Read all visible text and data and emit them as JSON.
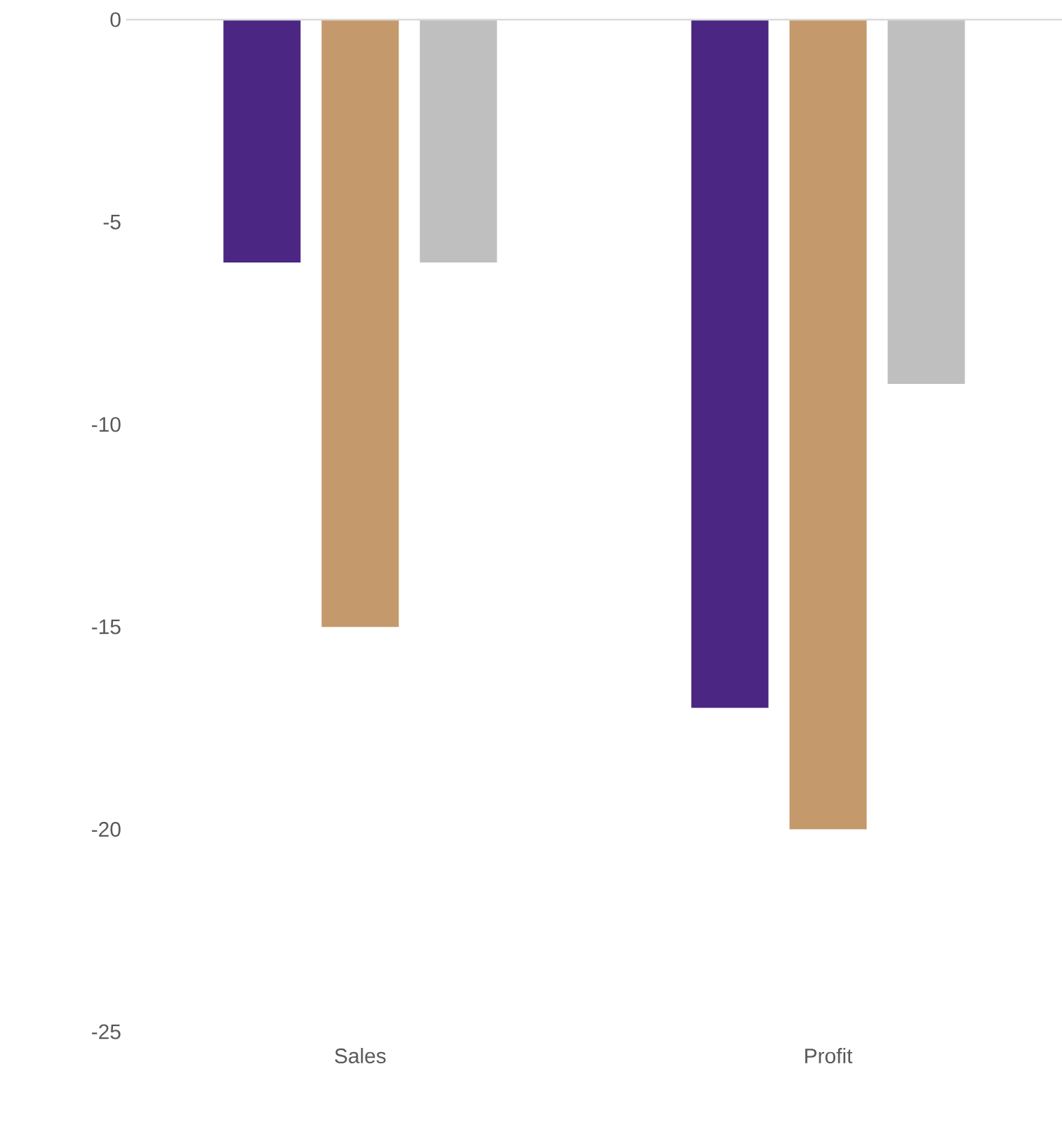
{
  "chart_data": {
    "type": "bar",
    "categories": [
      "Sales",
      "Profit"
    ],
    "series": [
      {
        "color": "#4b2683",
        "values": [
          -6,
          -17
        ]
      },
      {
        "color": "#c4996c",
        "values": [
          -15,
          -20
        ]
      },
      {
        "color": "#bfbfbf",
        "values": [
          -6,
          -9
        ]
      }
    ],
    "ylim": [
      -25,
      0
    ],
    "yticks": [
      -25,
      -20,
      -15,
      -10,
      -5,
      0
    ]
  }
}
